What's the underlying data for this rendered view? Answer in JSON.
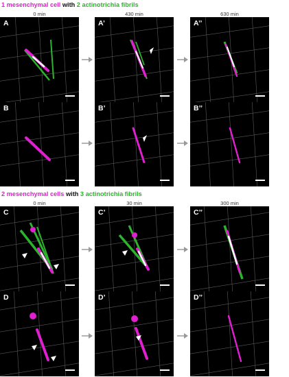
{
  "top": {
    "title": {
      "part1": "1 mesenchymal cell",
      "part2": " with ",
      "part3": "2 actinotrichia fibrils"
    },
    "times": [
      "0 min",
      "430 min",
      "630 min"
    ],
    "row1_labels": [
      "A",
      "A’",
      "A’’"
    ],
    "row2_labels": [
      "B",
      "B’",
      "B’’"
    ]
  },
  "bottom": {
    "title": {
      "part1": "2 mesenchymal cells",
      "part2": " with ",
      "part3": "3 actinotrichia fibrils"
    },
    "times": [
      "0 min",
      "30 min",
      "300 min"
    ],
    "row1_labels": [
      "C",
      "C’",
      "C’’"
    ],
    "row2_labels": [
      "D",
      "D’",
      "D’’"
    ]
  },
  "colors": {
    "mesenchymal": "#e020d0",
    "actinotrichia": "#2cb52c",
    "overlap": "#ffffff",
    "grid": "#5a5a5a",
    "arrow": "#9a9a9a"
  }
}
